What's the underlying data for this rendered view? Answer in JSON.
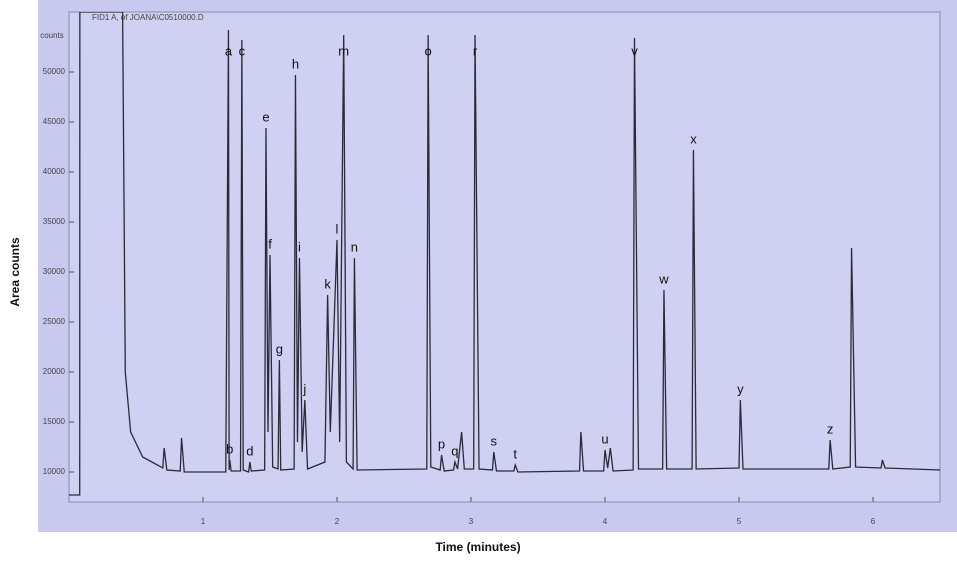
{
  "chart_data": {
    "type": "line",
    "title": "FID1 A, of JOANA\\C0510000.D",
    "y_unit": "counts",
    "ylabel": "Area counts",
    "xlabel": "Time (minutes)",
    "color": "#2a2a3a",
    "xlim": [
      0,
      6.5
    ],
    "ylim": [
      7000,
      56000
    ],
    "xticks": [
      1,
      2,
      3,
      4,
      5,
      6
    ],
    "yticks": [
      10000,
      15000,
      20000,
      25000,
      30000,
      35000,
      40000,
      45000,
      50000
    ],
    "x": [
      0.0,
      0.08,
      0.081,
      0.4,
      0.42,
      0.46,
      0.55,
      0.7,
      0.71,
      0.73,
      0.83,
      0.84,
      0.86,
      1.17,
      1.19,
      1.195,
      1.2,
      1.21,
      1.28,
      1.29,
      1.3,
      1.34,
      1.35,
      1.36,
      1.46,
      1.47,
      1.485,
      1.5,
      1.52,
      1.56,
      1.57,
      1.58,
      1.68,
      1.69,
      1.705,
      1.72,
      1.74,
      1.76,
      1.78,
      1.91,
      1.93,
      1.95,
      2.0,
      2.02,
      2.05,
      2.07,
      2.12,
      2.13,
      2.15,
      2.67,
      2.68,
      2.7,
      2.77,
      2.78,
      2.8,
      2.87,
      2.88,
      2.9,
      2.93,
      2.95,
      3.02,
      3.03,
      3.06,
      3.16,
      3.17,
      3.19,
      3.32,
      3.33,
      3.35,
      3.81,
      3.82,
      3.84,
      3.99,
      4.0,
      4.02,
      4.04,
      4.06,
      4.21,
      4.22,
      4.25,
      4.43,
      4.44,
      4.46,
      4.65,
      4.66,
      4.68,
      5.0,
      5.01,
      5.03,
      5.67,
      5.68,
      5.7,
      5.83,
      5.84,
      5.87,
      6.06,
      6.07,
      6.09,
      6.5
    ],
    "values": [
      7700,
      7700,
      56000,
      56000,
      20000,
      14000,
      11500,
      10400,
      12400,
      10200,
      10100,
      13400,
      10000,
      10000,
      54200,
      10200,
      11200,
      10100,
      10100,
      53200,
      10200,
      10000,
      11000,
      10100,
      10200,
      44400,
      14000,
      31700,
      10500,
      10300,
      21200,
      10200,
      10300,
      49700,
      13000,
      31400,
      12000,
      17200,
      10300,
      11000,
      27700,
      14000,
      33200,
      13000,
      53700,
      11000,
      10300,
      31400,
      10200,
      10300,
      53700,
      10500,
      10200,
      11700,
      10100,
      10200,
      11000,
      10300,
      14000,
      10300,
      10300,
      53700,
      10300,
      10200,
      12000,
      10100,
      10100,
      10700,
      10000,
      10100,
      14000,
      10100,
      10100,
      12200,
      10400,
      12400,
      10100,
      10200,
      53400,
      10300,
      10300,
      28200,
      10300,
      10300,
      42200,
      10300,
      10400,
      17200,
      10300,
      10300,
      13200,
      10300,
      10500,
      32400,
      10500,
      10400,
      11200,
      10400,
      10200
    ],
    "annotations": [
      {
        "text": "a",
        "x": 1.19,
        "y": 54200
      },
      {
        "text": "b",
        "x": 1.2,
        "y": 11200
      },
      {
        "text": "c",
        "x": 1.29,
        "y": 53200
      },
      {
        "text": "d",
        "x": 1.35,
        "y": 11000
      },
      {
        "text": "e",
        "x": 1.47,
        "y": 44400
      },
      {
        "text": "f",
        "x": 1.5,
        "y": 31700
      },
      {
        "text": "g",
        "x": 1.57,
        "y": 21200
      },
      {
        "text": "h",
        "x": 1.69,
        "y": 49700
      },
      {
        "text": "i",
        "x": 1.72,
        "y": 31400
      },
      {
        "text": "j",
        "x": 1.76,
        "y": 17200
      },
      {
        "text": "k",
        "x": 1.93,
        "y": 27700
      },
      {
        "text": "l",
        "x": 2.0,
        "y": 33200
      },
      {
        "text": "m",
        "x": 2.05,
        "y": 53700
      },
      {
        "text": "n",
        "x": 2.13,
        "y": 31400
      },
      {
        "text": "o",
        "x": 2.68,
        "y": 53700
      },
      {
        "text": "p",
        "x": 2.78,
        "y": 11700
      },
      {
        "text": "q",
        "x": 2.88,
        "y": 11000
      },
      {
        "text": "r",
        "x": 3.03,
        "y": 53700
      },
      {
        "text": "s",
        "x": 3.17,
        "y": 12000
      },
      {
        "text": "t",
        "x": 3.33,
        "y": 10700
      },
      {
        "text": "u",
        "x": 4.0,
        "y": 12200
      },
      {
        "text": "v",
        "x": 4.22,
        "y": 53400
      },
      {
        "text": "w",
        "x": 4.44,
        "y": 28200
      },
      {
        "text": "x",
        "x": 4.66,
        "y": 42200
      },
      {
        "text": "y",
        "x": 5.01,
        "y": 17200
      },
      {
        "text": "z",
        "x": 5.68,
        "y": 13200
      }
    ]
  }
}
